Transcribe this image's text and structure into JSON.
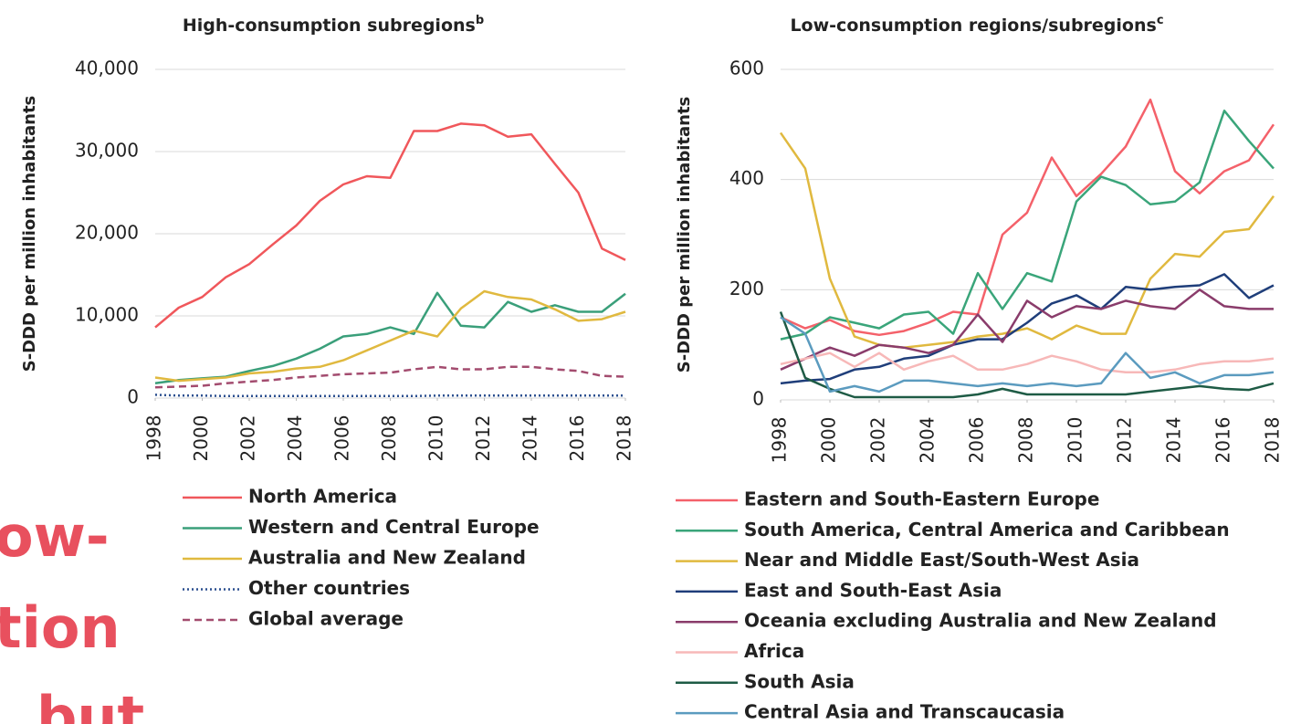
{
  "chart_data": [
    {
      "type": "line",
      "title": "High-consumption subregions",
      "title_note": "b",
      "ylabel": "S-DDD per million inhabitants",
      "x": [
        1998,
        1999,
        2000,
        2001,
        2002,
        2003,
        2004,
        2005,
        2006,
        2007,
        2008,
        2009,
        2010,
        2011,
        2012,
        2013,
        2014,
        2015,
        2016,
        2017,
        2018
      ],
      "xlim": [
        1998,
        2018
      ],
      "xticks": [
        1998,
        2000,
        2002,
        2004,
        2006,
        2008,
        2010,
        2012,
        2014,
        2016,
        2018
      ],
      "ylim": [
        0,
        40000
      ],
      "yticks": [
        0,
        {
          "value": 10000,
          "label": "10,000"
        },
        {
          "value": 20000,
          "label": "20,000"
        },
        {
          "value": 30000,
          "label": "30,000"
        },
        {
          "value": 40000,
          "label": "40,000"
        }
      ],
      "grid": true,
      "legend": "bottom",
      "series": [
        {
          "name": "North America",
          "color": "#f0575b",
          "dash": "solid",
          "values": [
            8600,
            11000,
            12300,
            14700,
            16300,
            18700,
            21000,
            24000,
            26000,
            27000,
            26800,
            32500,
            32500,
            33400,
            33200,
            31800,
            32100,
            28500,
            25000,
            18200,
            16800
          ]
        },
        {
          "name": "Western and Central Europe",
          "color": "#3a9f7a",
          "dash": "solid",
          "values": [
            1800,
            2200,
            2400,
            2600,
            3300,
            3900,
            4800,
            6000,
            7500,
            7800,
            8600,
            7800,
            12800,
            8800,
            8600,
            11700,
            10500,
            11300,
            10500,
            10500,
            12700
          ]
        },
        {
          "name": "Australia and New Zealand",
          "color": "#e0b93f",
          "dash": "solid",
          "values": [
            2500,
            2100,
            2300,
            2500,
            3000,
            3200,
            3600,
            3800,
            4600,
            5800,
            7000,
            8200,
            7500,
            10900,
            13000,
            12300,
            12000,
            10800,
            9400,
            9600,
            10500
          ]
        },
        {
          "name": "Other countries",
          "color": "#2b4f8f",
          "dash": "dotted",
          "values": [
            400,
            300,
            300,
            250,
            250,
            250,
            250,
            250,
            250,
            250,
            250,
            250,
            300,
            300,
            300,
            300,
            300,
            300,
            300,
            300,
            300
          ]
        },
        {
          "name": "Global average",
          "color": "#a34c6f",
          "dash": "dashed",
          "values": [
            1300,
            1400,
            1500,
            1800,
            2000,
            2200,
            2500,
            2700,
            2900,
            3000,
            3100,
            3500,
            3800,
            3500,
            3500,
            3800,
            3800,
            3500,
            3300,
            2700,
            2600
          ]
        }
      ]
    },
    {
      "type": "line",
      "title": "Low-consumption regions/subregions",
      "title_note": "c",
      "ylabel": "S-DDD per million inhabitants",
      "x": [
        1998,
        1999,
        2000,
        2001,
        2002,
        2003,
        2004,
        2005,
        2006,
        2007,
        2008,
        2009,
        2010,
        2011,
        2012,
        2013,
        2014,
        2015,
        2016,
        2017,
        2018
      ],
      "xlim": [
        1998,
        2018
      ],
      "xticks": [
        1998,
        2000,
        2002,
        2004,
        2006,
        2008,
        2010,
        2012,
        2014,
        2016,
        2018
      ],
      "ylim": [
        0,
        600
      ],
      "yticks": [
        0,
        200,
        400,
        600
      ],
      "grid": true,
      "legend": "bottom",
      "series": [
        {
          "name": "Eastern and South-Eastern Europe",
          "color": "#f4616a",
          "dash": "solid",
          "values": [
            150,
            130,
            145,
            125,
            118,
            125,
            140,
            160,
            155,
            300,
            340,
            440,
            370,
            410,
            460,
            545,
            415,
            375,
            415,
            435,
            500
          ]
        },
        {
          "name": "South America, Central America and Caribbean",
          "color": "#3aa57a",
          "dash": "solid",
          "values": [
            110,
            120,
            150,
            140,
            130,
            155,
            160,
            120,
            230,
            165,
            230,
            215,
            360,
            405,
            390,
            355,
            360,
            395,
            525,
            470,
            420
          ]
        },
        {
          "name": "Near and Middle East/South-West Asia",
          "color": "#e0b93f",
          "dash": "solid",
          "values": [
            485,
            420,
            220,
            115,
            100,
            95,
            100,
            105,
            115,
            120,
            130,
            110,
            135,
            120,
            120,
            220,
            265,
            260,
            305,
            310,
            370
          ]
        },
        {
          "name": "East and South-East Asia",
          "color": "#1f3e7a",
          "dash": "solid",
          "values": [
            30,
            35,
            38,
            55,
            60,
            75,
            80,
            100,
            110,
            110,
            140,
            175,
            190,
            165,
            205,
            200,
            205,
            208,
            228,
            185,
            208
          ]
        },
        {
          "name": "Oceania excluding Australia and New Zealand",
          "color": "#8a3c6b",
          "dash": "solid",
          "values": [
            55,
            75,
            95,
            80,
            100,
            95,
            85,
            100,
            155,
            105,
            180,
            150,
            170,
            165,
            180,
            170,
            165,
            200,
            170,
            165,
            165
          ]
        },
        {
          "name": "Africa",
          "color": "#f7b8b8",
          "dash": "solid",
          "values": [
            65,
            75,
            85,
            60,
            85,
            55,
            70,
            80,
            55,
            55,
            65,
            80,
            70,
            55,
            50,
            50,
            55,
            65,
            70,
            70,
            75
          ]
        },
        {
          "name": "South Asia",
          "color": "#1e5b45",
          "dash": "solid",
          "values": [
            160,
            40,
            20,
            5,
            5,
            5,
            5,
            5,
            10,
            20,
            10,
            10,
            10,
            10,
            10,
            15,
            20,
            25,
            20,
            18,
            30
          ]
        },
        {
          "name": "Central Asia and Transcaucasia",
          "color": "#5b9bbf",
          "dash": "solid",
          "values": [
            150,
            120,
            15,
            25,
            15,
            35,
            35,
            30,
            25,
            30,
            25,
            30,
            25,
            30,
            85,
            40,
            50,
            30,
            45,
            45,
            50
          ]
        }
      ]
    }
  ],
  "slide_text": [
    "ow-",
    "tion",
    "but"
  ]
}
